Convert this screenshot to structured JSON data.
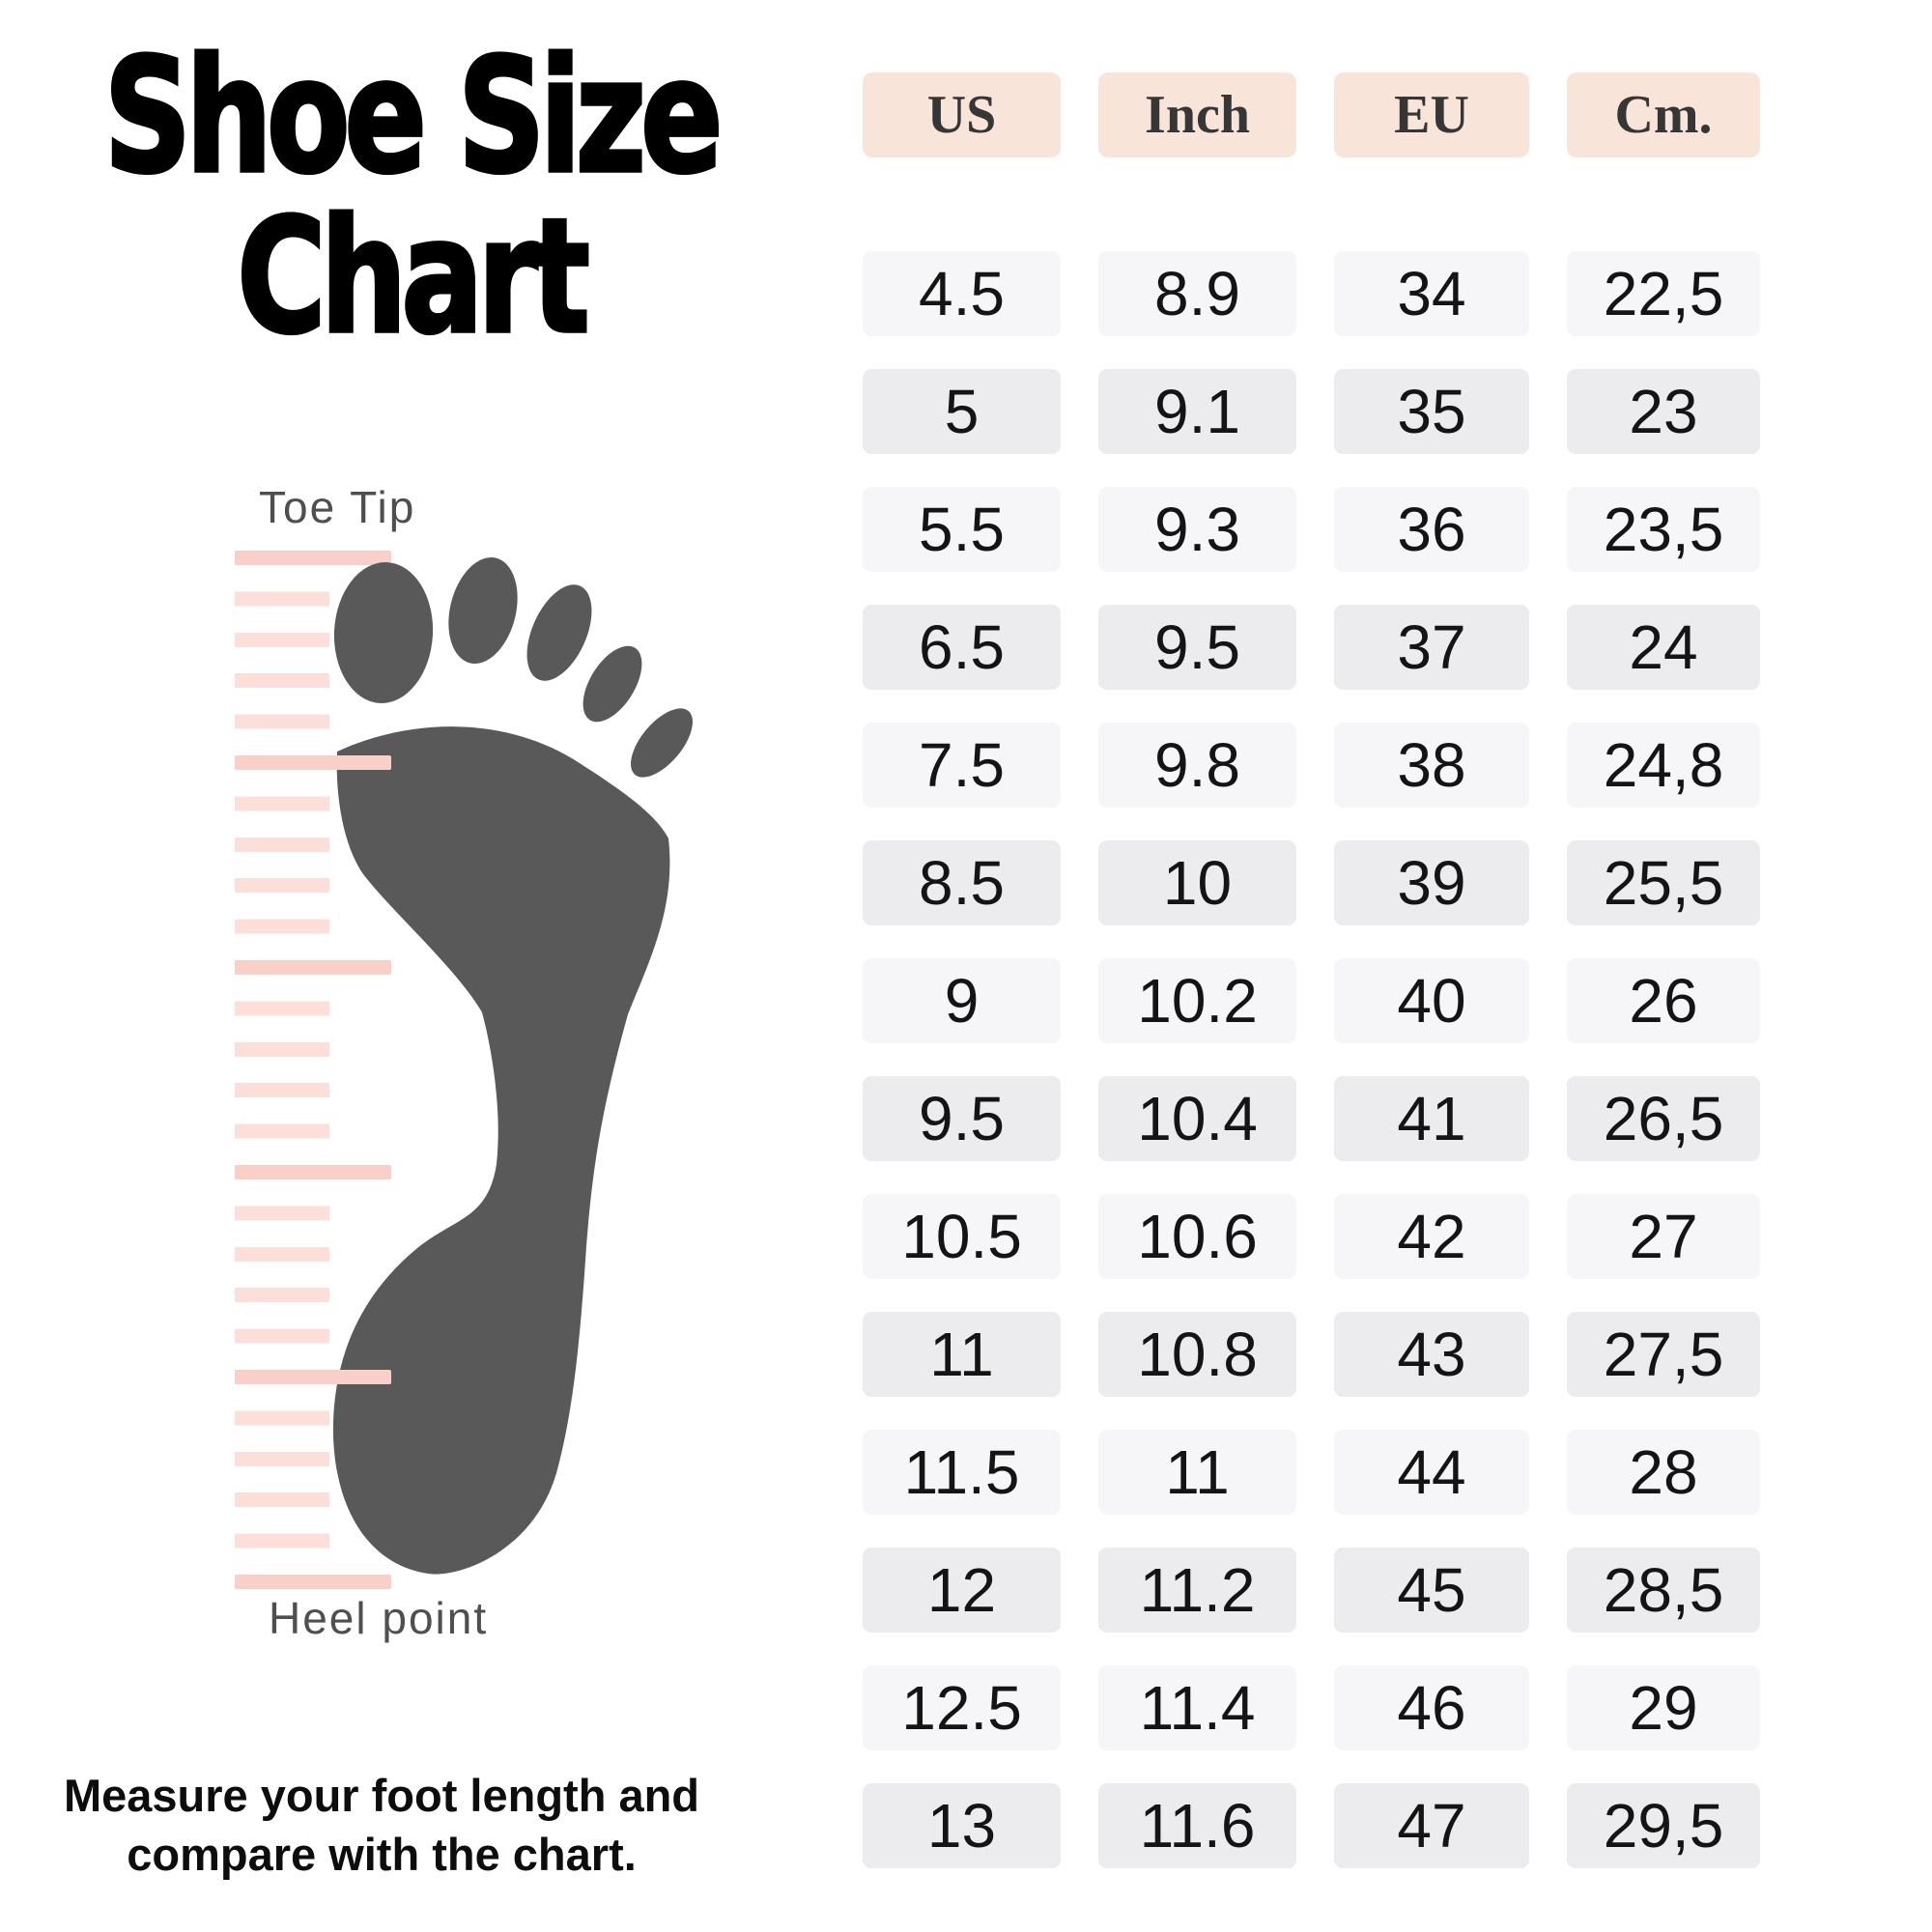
{
  "title": {
    "line1": "Shoe Size",
    "line2": "Chart"
  },
  "diagram": {
    "toe_label": "Toe Tip",
    "heel_label": "Heel point"
  },
  "footer": {
    "line1": "Measure your foot length and",
    "line2": "compare with the chart."
  },
  "colors": {
    "header_bg": "#f9e4da",
    "header_text": "#363636",
    "cell_bg_odd": "#f6f6f8",
    "cell_bg_even": "#ececef",
    "cell_text": "#141414",
    "foot": "#595959",
    "ruler_stripe": "#fbdfd8",
    "ruler_marker": "#f8d0c8",
    "label_text": "#4f4f4f"
  },
  "chart_data": {
    "type": "table",
    "title": "Shoe Size Chart",
    "columns": [
      "US",
      "Inch",
      "EU",
      "Cm."
    ],
    "rows": [
      [
        "4.5",
        "8.9",
        "34",
        "22,5"
      ],
      [
        "5",
        "9.1",
        "35",
        "23"
      ],
      [
        "5.5",
        "9.3",
        "36",
        "23,5"
      ],
      [
        "6.5",
        "9.5",
        "37",
        "24"
      ],
      [
        "7.5",
        "9.8",
        "38",
        "24,8"
      ],
      [
        "8.5",
        "10",
        "39",
        "25,5"
      ],
      [
        "9",
        "10.2",
        "40",
        "26"
      ],
      [
        "9.5",
        "10.4",
        "41",
        "26,5"
      ],
      [
        "10.5",
        "10.6",
        "42",
        "27"
      ],
      [
        "11",
        "10.8",
        "43",
        "27,5"
      ],
      [
        "11.5",
        "11",
        "44",
        "28"
      ],
      [
        "12",
        "11.2",
        "45",
        "28,5"
      ],
      [
        "12.5",
        "11.4",
        "46",
        "29"
      ],
      [
        "13",
        "11.6",
        "47",
        "29,5"
      ]
    ]
  }
}
